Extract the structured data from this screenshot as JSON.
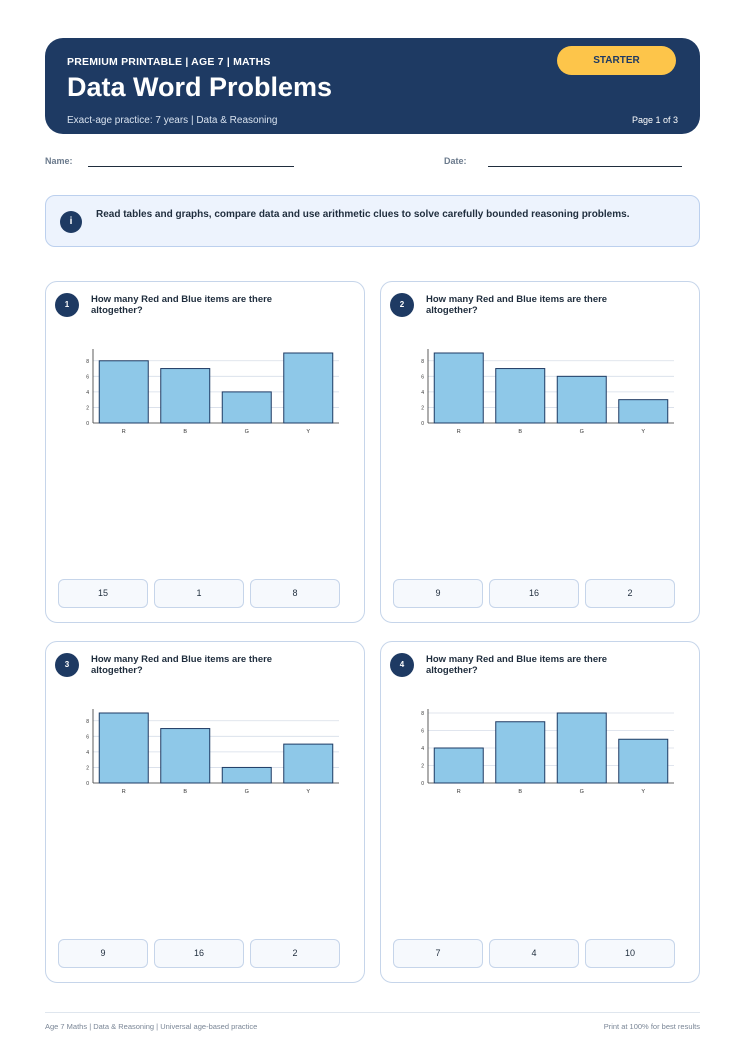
{
  "header": {
    "kicker": "PREMIUM PRINTABLE | AGE 7 | MATHS",
    "title": "Data Word Problems",
    "subtitle": "Exact-age practice: 7 years | Data & Reasoning",
    "badge": "STARTER",
    "page": "Page 1 of 3"
  },
  "fields": {
    "name": "Name:",
    "date": "Date:"
  },
  "info": {
    "icon": "i",
    "text": "Read tables and graphs, compare data and use arithmetic clues to solve carefully bounded reasoning problems."
  },
  "colors": {
    "primary": "#1e3a63",
    "accent": "#fdc54a",
    "bar": "#8ec8e8"
  },
  "questions": [
    {
      "number": "1",
      "text": "How many Red and Blue items are there altogether?",
      "options": [
        "15",
        "1",
        "8"
      ]
    },
    {
      "number": "2",
      "text": "How many Red and Blue items are there altogether?",
      "options": [
        "9",
        "16",
        "2"
      ]
    },
    {
      "number": "3",
      "text": "How many Red and Blue items are there altogether?",
      "options": [
        "9",
        "16",
        "2"
      ]
    },
    {
      "number": "4",
      "text": "How many Red and Blue items are there altogether?",
      "options": [
        "7",
        "4",
        "10"
      ]
    }
  ],
  "chart_data": [
    {
      "type": "bar",
      "categories": [
        "R",
        "B",
        "G",
        "Y"
      ],
      "values": [
        8,
        7,
        4,
        9
      ],
      "y_ticks": [
        0,
        2,
        4,
        6,
        8
      ],
      "ylim": [
        0,
        9
      ],
      "grid": true
    },
    {
      "type": "bar",
      "categories": [
        "R",
        "B",
        "G",
        "Y"
      ],
      "values": [
        9,
        7,
        6,
        3
      ],
      "y_ticks": [
        0,
        2,
        4,
        6,
        8
      ],
      "ylim": [
        0,
        9
      ],
      "grid": true
    },
    {
      "type": "bar",
      "categories": [
        "R",
        "B",
        "G",
        "Y"
      ],
      "values": [
        9,
        7,
        2,
        5
      ],
      "y_ticks": [
        0,
        2,
        4,
        6,
        8
      ],
      "ylim": [
        0,
        9
      ],
      "grid": true
    },
    {
      "type": "bar",
      "categories": [
        "R",
        "B",
        "G",
        "Y"
      ],
      "values": [
        4,
        7,
        8,
        5
      ],
      "y_ticks": [
        0,
        2,
        4,
        6,
        8
      ],
      "ylim": [
        0,
        8
      ],
      "grid": true
    }
  ],
  "footer": {
    "left": "Age 7 Maths | Data & Reasoning | Universal age-based practice",
    "right": "Print at 100% for best results"
  }
}
